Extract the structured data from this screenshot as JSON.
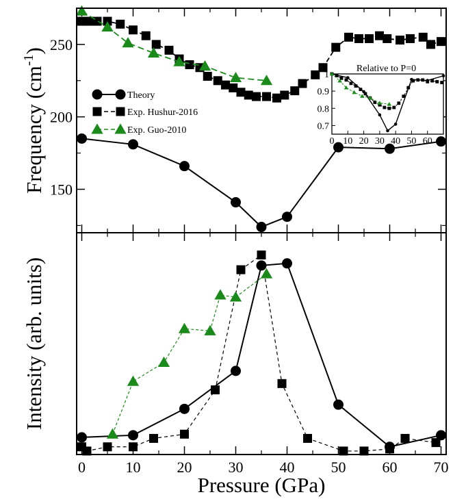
{
  "chart_data": [
    {
      "type": "line",
      "panel": "top",
      "ylabel": "Frequency (cm",
      "ylabel_sup": "-1",
      "ylabel_close": ")",
      "xlim": [
        -1,
        71
      ],
      "ylim": [
        120,
        275
      ],
      "xticks": [
        0,
        10,
        20,
        30,
        40,
        50,
        60,
        70
      ],
      "yticks": [
        150,
        200,
        250
      ],
      "legend_position": "middle-left",
      "series": [
        {
          "name": "Theory",
          "color": "#000000",
          "marker": "circle",
          "line": "solid",
          "x": [
            0,
            10,
            20,
            30,
            35,
            40,
            50,
            60,
            70
          ],
          "y": [
            185,
            181,
            166,
            141,
            124,
            131,
            179,
            178,
            183
          ]
        },
        {
          "name": "Exp. Hushur-2016",
          "color": "#000000",
          "marker": "square",
          "line": "dashed",
          "x": [
            0,
            1.5,
            3,
            5,
            7.5,
            10,
            12.5,
            14.5,
            17,
            19,
            21,
            23,
            24.5,
            26.5,
            28,
            29.5,
            31,
            32.5,
            34,
            36,
            38,
            39.5,
            41.5,
            43,
            45.5,
            47,
            49.5,
            52,
            54,
            56,
            58,
            59.5,
            62,
            64,
            66.5,
            68,
            70
          ],
          "y": [
            266,
            266,
            266,
            266,
            264,
            260,
            256,
            250,
            246,
            240,
            236,
            234,
            228,
            225,
            222,
            220,
            217,
            215,
            214,
            214,
            213,
            215,
            218,
            223,
            229,
            234,
            248,
            255,
            254,
            254,
            256,
            254,
            253,
            254,
            255,
            250,
            252
          ]
        },
        {
          "name": "Exp. Guo-2010",
          "color": "#1a8a1a",
          "marker": "triangle",
          "line": "dashed",
          "x": [
            0,
            5,
            9,
            14,
            19,
            24,
            30,
            36
          ],
          "y": [
            273,
            262,
            251,
            244,
            238,
            235,
            227,
            225
          ]
        }
      ],
      "inset": {
        "title": "Relative to P=0",
        "xlim": [
          0,
          70
        ],
        "ylim": [
          0.65,
          1.0
        ],
        "xticks": [
          0,
          10,
          20,
          30,
          40,
          50,
          60
        ],
        "yticks": [
          0.7,
          0.8,
          0.9,
          1
        ],
        "ytick_labels": [
          "0.7",
          "0.8",
          "0.9",
          "1"
        ],
        "series": [
          {
            "name": "Theory",
            "marker": "circle",
            "color": "#000000",
            "x": [
              0,
              10,
              20,
              30,
              35,
              40,
              50,
              60,
              70
            ],
            "y": [
              1.0,
              0.978,
              0.897,
              0.762,
              0.67,
              0.708,
              0.968,
              0.962,
              0.989
            ]
          },
          {
            "name": "Exp. Hushur-2016",
            "marker": "square",
            "color": "#000000",
            "x": [
              0,
              3,
              6,
              9,
              12,
              15,
              18,
              21,
              24,
              27,
              30,
              33,
              36,
              39,
              42,
              45,
              48,
              51,
              54,
              57,
              60,
              63,
              66,
              69
            ],
            "y": [
              1.0,
              0.99,
              0.975,
              0.965,
              0.945,
              0.93,
              0.91,
              0.885,
              0.86,
              0.835,
              0.82,
              0.805,
              0.8,
              0.805,
              0.83,
              0.87,
              0.92,
              0.96,
              0.965,
              0.965,
              0.955,
              0.96,
              0.955,
              0.95
            ]
          },
          {
            "name": "Exp. Guo-2010",
            "marker": "triangle",
            "color": "#1a8a1a",
            "x": [
              0,
              5,
              9,
              14,
              19,
              24,
              30,
              36
            ],
            "y": [
              1.0,
              0.96,
              0.92,
              0.893,
              0.871,
              0.861,
              0.831,
              0.824
            ]
          }
        ]
      }
    },
    {
      "type": "line",
      "panel": "bottom",
      "xlabel": "Pressure (GPa)",
      "ylabel": "Intensity (arb. units)",
      "xlim": [
        -1,
        71
      ],
      "ylim": [
        0,
        1.0
      ],
      "xticks": [
        0,
        10,
        20,
        30,
        40,
        50,
        60,
        70
      ],
      "series": [
        {
          "name": "Theory",
          "color": "#000000",
          "marker": "circle",
          "line": "solid",
          "x": [
            0,
            10,
            20,
            30,
            35,
            40,
            50,
            60,
            70
          ],
          "y": [
            0.075,
            0.085,
            0.21,
            0.39,
            0.89,
            0.9,
            0.23,
            0.03,
            0.085
          ]
        },
        {
          "name": "Exp. Hushur-2016",
          "color": "#000000",
          "marker": "square",
          "line": "dashed",
          "x": [
            0,
            1,
            5,
            10,
            14,
            20,
            26,
            31,
            35,
            39,
            44,
            51,
            55,
            60,
            63,
            69
          ],
          "y": [
            0.03,
            0.01,
            0.03,
            0.03,
            0.07,
            0.09,
            0.3,
            0.87,
            0.94,
            0.33,
            0.07,
            0.01,
            0.01,
            0.02,
            0.07,
            0.05
          ]
        },
        {
          "name": "Exp. Guo-2010",
          "color": "#1a8a1a",
          "marker": "triangle",
          "line": "dashed",
          "x": [
            6,
            10,
            16,
            20,
            25,
            27,
            30,
            36
          ],
          "y": [
            0.09,
            0.34,
            0.43,
            0.59,
            0.58,
            0.75,
            0.74,
            0.85
          ]
        }
      ]
    }
  ]
}
